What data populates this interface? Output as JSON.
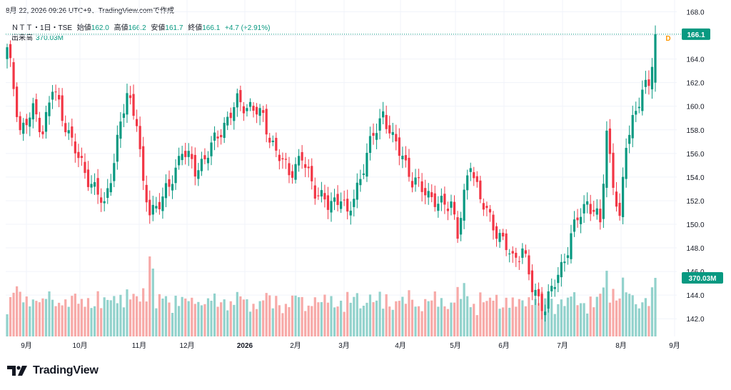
{
  "header": {
    "timestamp": "8月 22, 2026 09:26 UTC+9、TradingView.comで作成",
    "symbol": "ＮＴＴ・1日・TSE",
    "open_label": "始値",
    "open_value": "162.0",
    "high_label": "高値",
    "high_value": "166.2",
    "low_label": "安値",
    "low_value": "161.7",
    "close_label": "終値",
    "close_value": "166.1",
    "change": "+4.7 (+2.91%)",
    "volume_label": "出来高",
    "volume_value": "370.03M"
  },
  "logo": {
    "text": "TradingView"
  },
  "colors": {
    "up": "#089981",
    "down": "#f23645",
    "vol_up": "#92d2cc",
    "vol_down": "#f7a9a7",
    "text": "#131722",
    "grid": "#f0f3fa"
  },
  "chart_data": {
    "type": "candlestick",
    "symbol": "ＮＴＴ",
    "interval": "1日",
    "exchange": "TSE",
    "ylim": [
      140.5,
      169.0
    ],
    "y_ticks": [
      "142.0",
      "144.0",
      "146.0",
      "148.0",
      "150.0",
      "152.0",
      "154.0",
      "156.0",
      "158.0",
      "160.0",
      "162.0",
      "164.0",
      "166.0",
      "168.0"
    ],
    "x_labels": [
      "9月",
      "10月",
      "11月",
      "12月",
      "2026",
      "2月",
      "3月",
      "4月",
      "5月",
      "6月",
      "7月",
      "8月",
      "9月"
    ],
    "last_price": "166.1",
    "last_volume": "370.03M",
    "dividend_marker": "D",
    "anchors": [
      [
        0,
        165.0
      ],
      [
        4,
        158.0
      ],
      [
        8,
        159.5
      ],
      [
        11,
        158.0
      ],
      [
        14,
        161.5
      ],
      [
        18,
        158.5
      ],
      [
        22,
        155.5
      ],
      [
        26,
        153.5
      ],
      [
        30,
        151.5
      ],
      [
        34,
        157.0
      ],
      [
        37,
        161.0
      ],
      [
        40,
        159.0
      ],
      [
        42,
        153.0
      ],
      [
        44,
        151.0
      ],
      [
        50,
        153.0
      ],
      [
        54,
        156.5
      ],
      [
        58,
        154.5
      ],
      [
        63,
        156.5
      ],
      [
        67,
        158.5
      ],
      [
        71,
        160.3
      ],
      [
        75,
        160.0
      ],
      [
        79,
        159.0
      ],
      [
        83,
        156.0
      ],
      [
        87,
        154.5
      ],
      [
        91,
        155.5
      ],
      [
        95,
        153.0
      ],
      [
        99,
        151.5
      ],
      [
        103,
        152.5
      ],
      [
        105,
        150.5
      ],
      [
        110,
        155.0
      ],
      [
        113,
        157.5
      ],
      [
        116,
        159.5
      ],
      [
        119,
        157.0
      ],
      [
        122,
        156.0
      ],
      [
        125,
        153.5
      ],
      [
        129,
        153.0
      ],
      [
        133,
        151.5
      ],
      [
        137,
        152.0
      ],
      [
        139,
        149.0
      ],
      [
        143,
        155.5
      ],
      [
        146,
        152.0
      ],
      [
        150,
        150.0
      ],
      [
        153,
        148.5
      ],
      [
        156,
        147.0
      ],
      [
        159,
        148.0
      ],
      [
        162,
        144.5
      ],
      [
        166,
        143.0
      ],
      [
        169,
        145.0
      ],
      [
        173,
        148.0
      ],
      [
        176,
        150.5
      ],
      [
        179,
        152.0
      ],
      [
        183,
        150.0
      ],
      [
        185,
        158.0
      ],
      [
        187,
        153.5
      ],
      [
        189,
        150.0
      ],
      [
        191,
        157.0
      ],
      [
        193,
        159.0
      ],
      [
        196,
        161.0
      ],
      [
        198,
        162.0
      ],
      [
        200,
        166.1
      ]
    ],
    "volume_note": "daily volume bars, coloured by candle direction; last bar 370.03M"
  }
}
